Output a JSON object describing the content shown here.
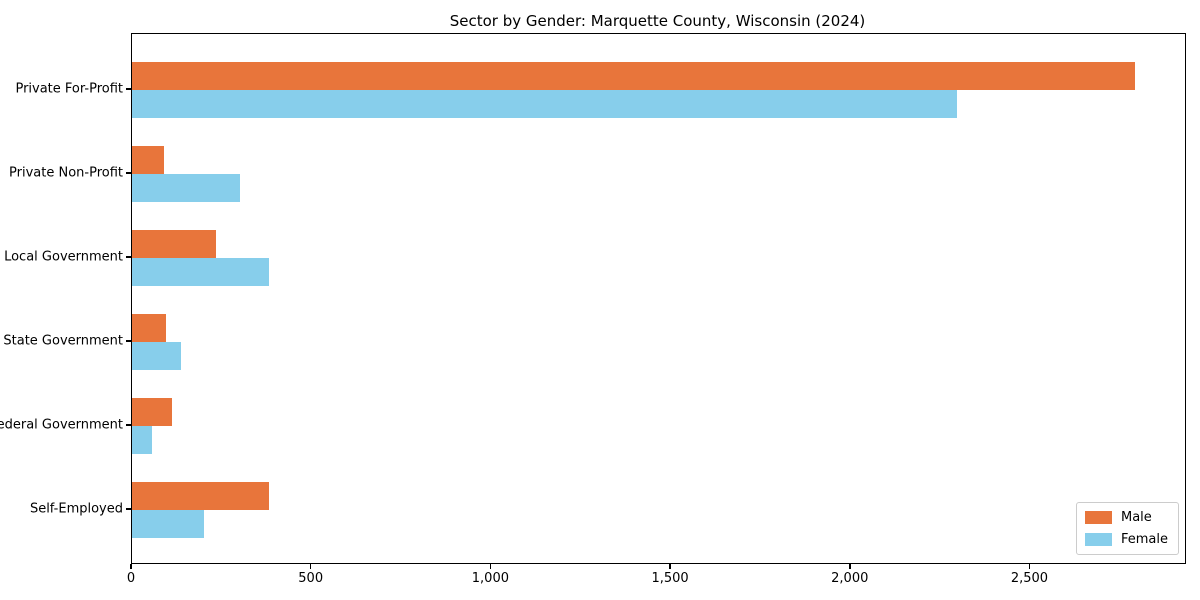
{
  "chart_data": {
    "type": "bar",
    "orientation": "horizontal",
    "title": "Sector by Gender: Marquette County, Wisconsin (2024)",
    "categories": [
      "Private For-Profit",
      "Private Non-Profit",
      "Local Government",
      "State Government",
      "Federal Government",
      "Self-Employed"
    ],
    "series": [
      {
        "name": "Male",
        "color": "#E8753B",
        "values": [
          2790,
          90,
          235,
          95,
          110,
          380
        ]
      },
      {
        "name": "Female",
        "color": "#87CEEB",
        "values": [
          2295,
          300,
          380,
          135,
          55,
          200
        ]
      }
    ],
    "xlim": [
      0,
      2930
    ],
    "x_ticks": [
      0,
      500,
      1000,
      1500,
      2000,
      2500
    ],
    "x_tick_labels": [
      "0",
      "500",
      "1,000",
      "1,500",
      "2,000",
      "2,500"
    ],
    "xlabel": "",
    "ylabel": "",
    "grid": false,
    "legend_position": "lower right",
    "colors": {
      "male": "#E8753B",
      "female": "#87CEEB",
      "frame": "#000000",
      "legend_border": "#cccccc"
    }
  }
}
